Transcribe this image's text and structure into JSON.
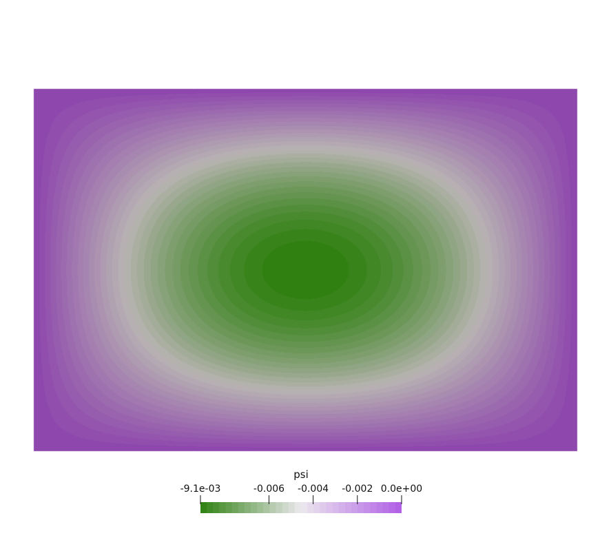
{
  "scalar_field": {
    "name": "psi",
    "min": -0.0091,
    "max": 0.0,
    "contour_bands": 32
  },
  "colorbar": {
    "title": "psi",
    "ticks": [
      {
        "value": -0.0091,
        "label": "-9.1e-03"
      },
      {
        "value": -0.006,
        "label": "-0.006"
      },
      {
        "value": -0.004,
        "label": "-0.004"
      },
      {
        "value": -0.002,
        "label": "-0.002"
      },
      {
        "value": 0.0,
        "label": "0.0e+00"
      }
    ],
    "orientation": "horizontal",
    "placement": "bottom-center"
  },
  "colors": {
    "colormap_low": "#2d8110",
    "colormap_mid": "#ece8ee",
    "colormap_high": "#b05fe5",
    "background": "#ffffff",
    "text": "#111111"
  }
}
